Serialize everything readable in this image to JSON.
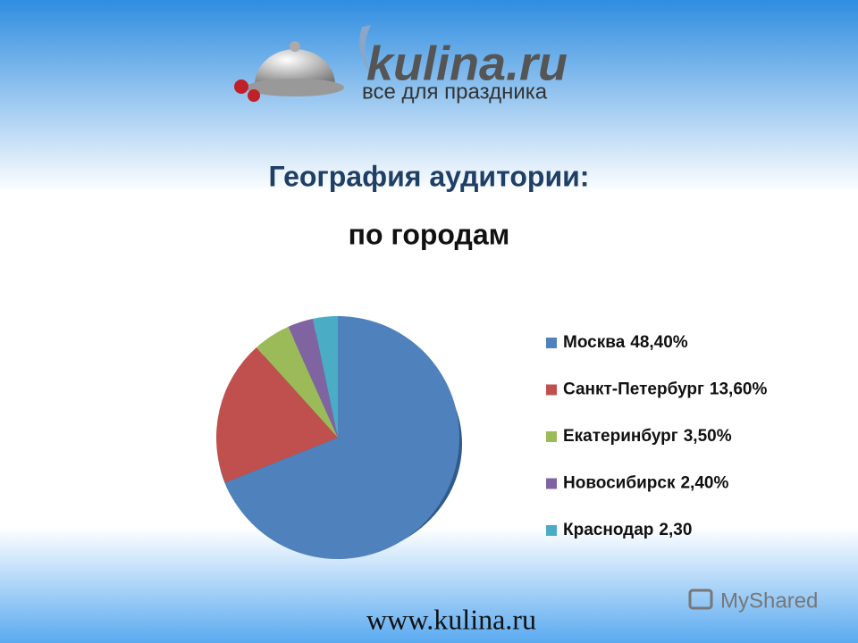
{
  "logo": {
    "name": "kulina.ru",
    "tagline": "все для праздника"
  },
  "footer": "www.kulina.ru",
  "watermark": "MyShared",
  "chart_data": {
    "type": "pie",
    "title": "География аудитории:",
    "subtitle": "по городам",
    "categories": [
      "Москва",
      "Санкт-Петербург",
      "Екатеринбург",
      "Новосибирск",
      "Краснодар"
    ],
    "values": [
      48.4,
      13.6,
      3.5,
      2.4,
      2.3
    ],
    "value_labels": [
      "48,40%",
      "13,60%",
      "3,50%",
      "2,40%",
      "2,30"
    ],
    "colors": [
      "#4f81bd",
      "#c0504d",
      "#9bbb59",
      "#8064a2",
      "#4bacc6"
    ],
    "legend": "right"
  }
}
